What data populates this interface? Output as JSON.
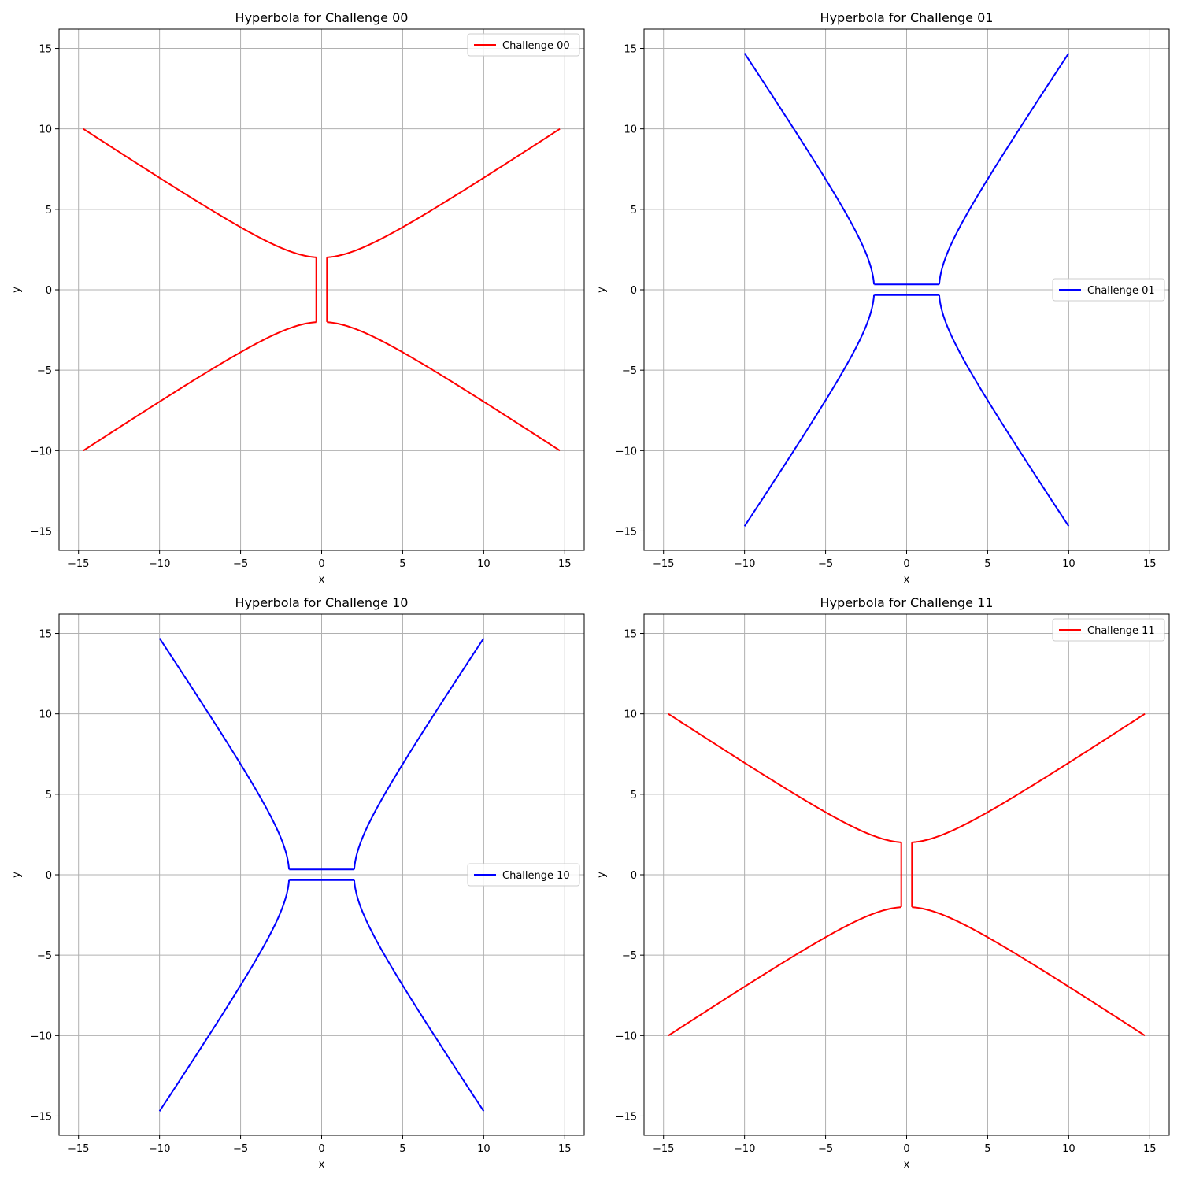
{
  "chart_data": [
    {
      "type": "line",
      "title": "Hyperbola for Challenge 00",
      "xlabel": "x",
      "ylabel": "y",
      "xlim": [
        -16.2,
        16.2
      ],
      "ylim": [
        -16.2,
        16.2
      ],
      "xticks": [
        -15,
        -10,
        -5,
        0,
        5,
        10,
        15
      ],
      "yticks": [
        -15,
        -10,
        -5,
        0,
        5,
        10,
        15
      ],
      "grid": true,
      "legend_position": "upper right",
      "series": [
        {
          "name": "Challenge 00",
          "color": "#ff0000",
          "curve": "hyperbola-horizontal",
          "a": 2,
          "b": 3,
          "x": [
            -14.7,
            -14,
            -12,
            -10,
            -8,
            -6,
            -4,
            -3,
            -2,
            -1.5,
            -1,
            -0.66,
            -0.66,
            -1,
            -1.5,
            -2,
            -3,
            -4,
            -6,
            -8,
            -10,
            -12,
            -14,
            -14.7
          ],
          "y_upper_right": [
            0.33,
            2.0,
            2.11,
            2.41,
            2.83,
            3.89,
            5.29,
            6.73,
            8.22,
            9.72,
            10.0
          ],
          "segments": [
            {
              "x": [
                -0.33,
                -0.33
              ],
              "y": [
                2.0,
                -2.0
              ]
            },
            {
              "x": [
                0.33,
                0.33
              ],
              "y": [
                2.0,
                -2.0
              ]
            }
          ]
        }
      ]
    },
    {
      "type": "line",
      "title": "Hyperbola for Challenge 01",
      "xlabel": "x",
      "ylabel": "y",
      "xlim": [
        -16.2,
        16.2
      ],
      "ylim": [
        -16.2,
        16.2
      ],
      "xticks": [
        -15,
        -10,
        -5,
        0,
        5,
        10,
        15
      ],
      "yticks": [
        -15,
        -10,
        -5,
        0,
        5,
        10,
        15
      ],
      "grid": true,
      "legend_position": "center right",
      "series": [
        {
          "name": "Challenge 01",
          "color": "#0000ff",
          "curve": "hyperbola-vertical",
          "a": 2,
          "b": 3,
          "segments": [
            {
              "x": [
                -2.0,
                2.0
              ],
              "y": [
                0.33,
                0.33
              ]
            },
            {
              "x": [
                -2.0,
                2.0
              ],
              "y": [
                -0.33,
                -0.33
              ]
            }
          ]
        }
      ]
    },
    {
      "type": "line",
      "title": "Hyperbola for Challenge 10",
      "xlabel": "x",
      "ylabel": "y",
      "xlim": [
        -16.2,
        16.2
      ],
      "ylim": [
        -16.2,
        16.2
      ],
      "xticks": [
        -15,
        -10,
        -5,
        0,
        5,
        10,
        15
      ],
      "yticks": [
        -15,
        -10,
        -5,
        0,
        5,
        10,
        15
      ],
      "grid": true,
      "legend_position": "center right",
      "series": [
        {
          "name": "Challenge 10",
          "color": "#0000ff",
          "curve": "hyperbola-vertical",
          "a": 2,
          "b": 3,
          "segments": [
            {
              "x": [
                -2.0,
                2.0
              ],
              "y": [
                0.33,
                0.33
              ]
            },
            {
              "x": [
                -2.0,
                2.0
              ],
              "y": [
                -0.33,
                -0.33
              ]
            }
          ]
        }
      ]
    },
    {
      "type": "line",
      "title": "Hyperbola for Challenge 11",
      "xlabel": "x",
      "ylabel": "y",
      "xlim": [
        -16.2,
        16.2
      ],
      "ylim": [
        -16.2,
        16.2
      ],
      "xticks": [
        -15,
        -10,
        -5,
        0,
        5,
        10,
        15
      ],
      "yticks": [
        -15,
        -10,
        -5,
        0,
        5,
        10,
        15
      ],
      "grid": true,
      "legend_position": "upper right",
      "series": [
        {
          "name": "Challenge 11",
          "color": "#ff0000",
          "curve": "hyperbola-horizontal",
          "a": 2,
          "b": 3,
          "segments": [
            {
              "x": [
                -0.33,
                -0.33
              ],
              "y": [
                2.0,
                -2.0
              ]
            },
            {
              "x": [
                0.33,
                0.33
              ],
              "y": [
                2.0,
                -2.0
              ]
            }
          ]
        }
      ]
    }
  ]
}
